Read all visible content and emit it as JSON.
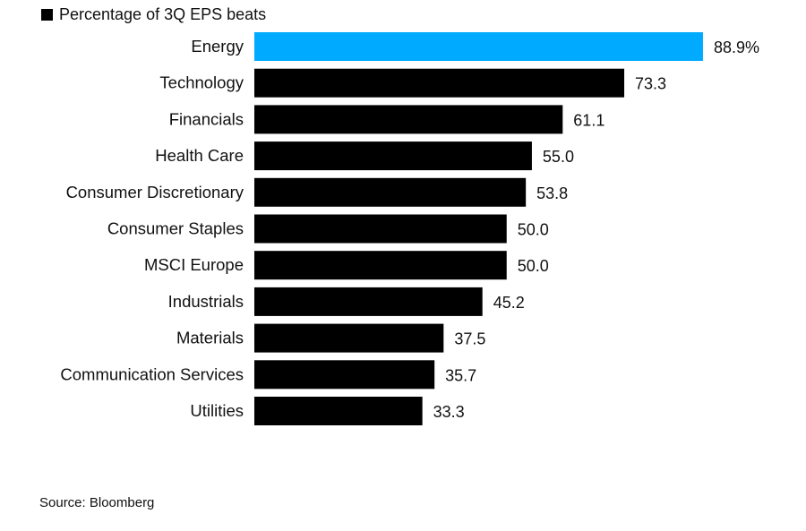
{
  "chart_data": {
    "type": "bar",
    "orientation": "horizontal",
    "title": "",
    "legend": [
      {
        "label": "Percentage of 3Q EPS beats",
        "color": "#000000"
      }
    ],
    "legend_position": "top-left",
    "categories": [
      "Energy",
      "Technology",
      "Financials",
      "Health Care",
      "Consumer Discretionary",
      "Consumer Staples",
      "MSCI Europe",
      "Industrials",
      "Materials",
      "Communication Services",
      "Utilities"
    ],
    "values": [
      88.9,
      73.3,
      61.1,
      55.0,
      53.8,
      50.0,
      50.0,
      45.2,
      37.5,
      35.7,
      33.3
    ],
    "value_labels": [
      "88.9%",
      "73.3",
      "61.1",
      "55.0",
      "53.8",
      "50.0",
      "50.0",
      "45.2",
      "37.5",
      "35.7",
      "33.3"
    ],
    "highlight_index": 0,
    "colors": {
      "highlight": "#00AAFF",
      "default": "#000000"
    },
    "xlabel": "",
    "ylabel": "",
    "xlim": [
      0,
      100
    ],
    "grid": false,
    "source": "Source: Bloomberg"
  }
}
